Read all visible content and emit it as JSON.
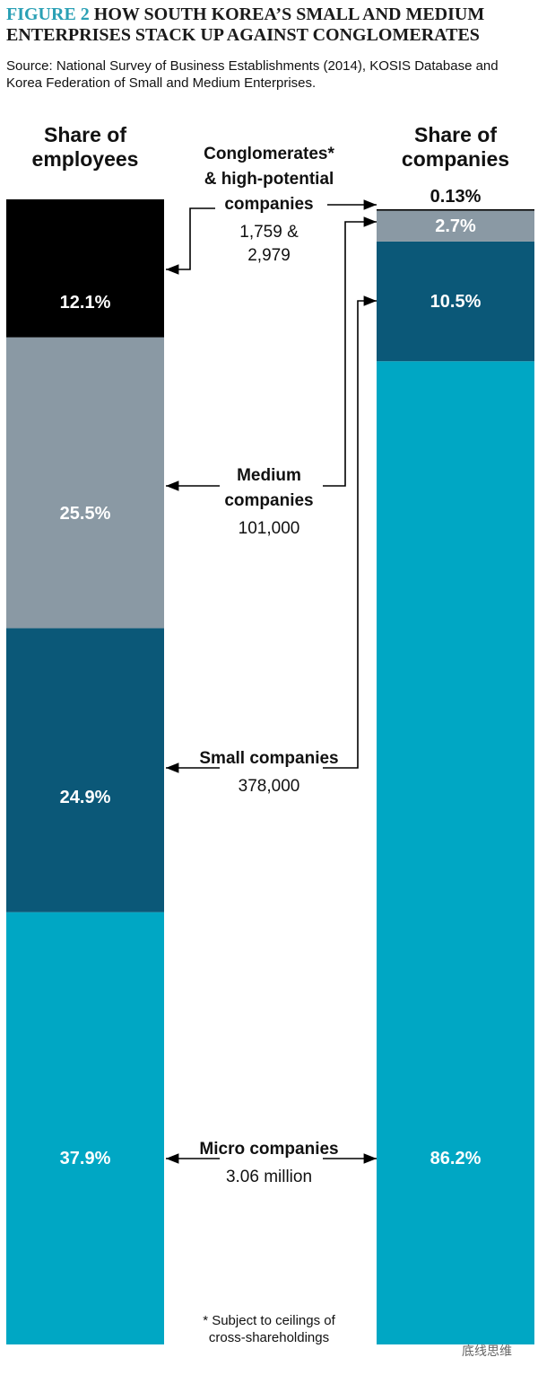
{
  "chart_data": {
    "type": "stacked-bar",
    "figure_label": "FIGURE 2",
    "title": "HOW SOUTH KOREA’S SMALL AND MEDIUM ENTERPRISES STACK UP AGAINST CONGLOMERATES",
    "source": "Source: National Survey of Business Establishments (2014), KOSIS Database and Korea Federation of Small and Medium Enterprises.",
    "categories": [
      "Share of employees",
      "Share of companies"
    ],
    "ylim": [
      0,
      100
    ],
    "series": [
      {
        "name": "Conglomerates* & high-potential companies",
        "count_label": "1,759 & 2,979",
        "color": "#000000",
        "values": [
          12.1,
          0.13
        ],
        "value_labels": [
          "12.1%",
          "0.13%"
        ]
      },
      {
        "name": "Medium companies",
        "count_label": "101,000",
        "color": "#8a99a4",
        "values": [
          25.5,
          2.7
        ],
        "value_labels": [
          "25.5%",
          "2.7%"
        ]
      },
      {
        "name": "Small companies",
        "count_label": "378,000",
        "color": "#0b5878",
        "values": [
          24.9,
          10.5
        ],
        "value_labels": [
          "24.9%",
          "10.5%"
        ]
      },
      {
        "name": "Micro companies",
        "count_label": "3.06 million",
        "color": "#00a7c4",
        "values": [
          37.9,
          86.2
        ],
        "value_labels": [
          "37.9%",
          "86.2%"
        ]
      }
    ],
    "footnote": "* Subject to ceilings of cross-shareholdings",
    "watermark": "底线思维"
  }
}
